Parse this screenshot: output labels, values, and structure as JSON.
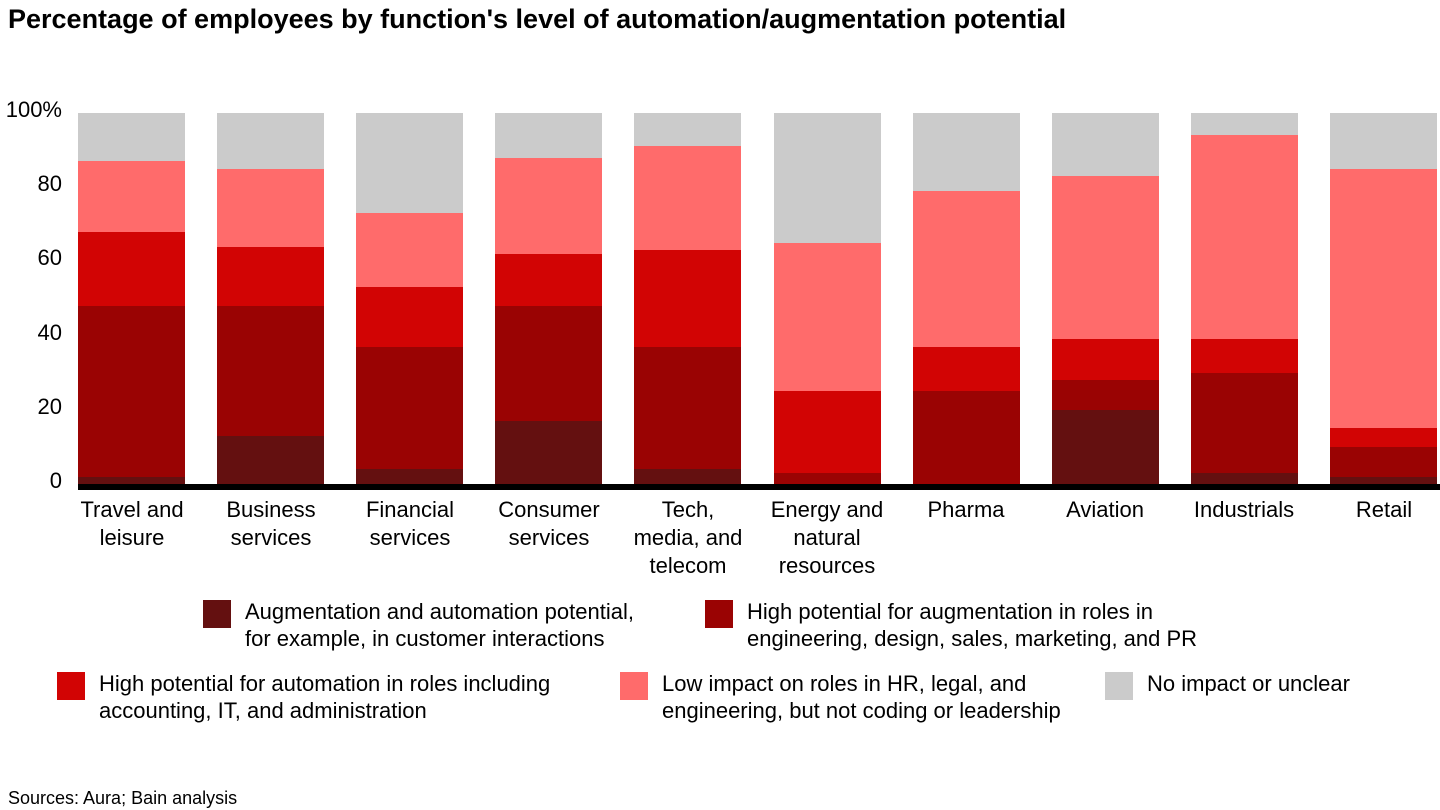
{
  "title": "Percentage of employees by function's level of automation/augmentation potential",
  "sources": "Sources: Aura; Bain analysis",
  "y_axis": {
    "ticks": [
      {
        "value": 100,
        "label": "100%"
      },
      {
        "value": 80,
        "label": "80"
      },
      {
        "value": 60,
        "label": "60"
      },
      {
        "value": 40,
        "label": "40"
      },
      {
        "value": 20,
        "label": "20"
      },
      {
        "value": 0,
        "label": "0"
      }
    ]
  },
  "chart_data": {
    "type": "bar",
    "stacked": true,
    "unit": "%",
    "ylim": [
      0,
      100
    ],
    "grid": false,
    "legend_position": "bottom",
    "categories": [
      "Travel and leisure",
      "Business services",
      "Financial services",
      "Consumer services",
      "Tech, media, and telecom",
      "Energy and natural resources",
      "Pharma",
      "Aviation",
      "Industrials",
      "Retail"
    ],
    "category_label_lines": [
      [
        "Travel and",
        "leisure"
      ],
      [
        "Business",
        "services"
      ],
      [
        "Financial",
        "services"
      ],
      [
        "Consumer",
        "services"
      ],
      [
        "Tech,",
        "media, and",
        "telecom"
      ],
      [
        "Energy and",
        "natural",
        "resources"
      ],
      [
        "Pharma"
      ],
      [
        "Aviation"
      ],
      [
        "Industrials"
      ],
      [
        "Retail"
      ]
    ],
    "series": [
      {
        "name": "Augmentation and automation potential, for example, in customer interactions",
        "color": "#641010",
        "values": [
          2,
          13,
          4,
          17,
          4,
          0,
          0,
          20,
          3,
          2
        ]
      },
      {
        "name": "High potential for augmentation in roles in engineering, design, sales, marketing, and PR",
        "color": "#9a0303",
        "values": [
          46,
          35,
          33,
          31,
          33,
          3,
          25,
          8,
          27,
          8
        ]
      },
      {
        "name": "High potential for automation in roles including accounting, IT, and administration",
        "color": "#d20404",
        "values": [
          20,
          16,
          16,
          14,
          26,
          22,
          12,
          11,
          9,
          5
        ]
      },
      {
        "name": "Low impact on roles in HR, legal, and engineering, but not coding or leadership",
        "color": "#ff6b6b",
        "values": [
          19,
          21,
          20,
          26,
          28,
          40,
          42,
          44,
          55,
          70
        ]
      },
      {
        "name": "No impact or unclear",
        "color": "#cbcbcb",
        "values": [
          13,
          15,
          27,
          12,
          9,
          35,
          21,
          17,
          6,
          15
        ]
      }
    ]
  },
  "legend": {
    "items": [
      {
        "color": "#641010",
        "label": "Augmentation and automation potential, for example, in customer interactions",
        "lines": [
          "Augmentation and automation potential,",
          "for example, in customer interactions"
        ]
      },
      {
        "color": "#9a0303",
        "label": "High potential for augmentation in roles in engineering, design, sales, marketing, and PR",
        "lines": [
          "High potential for augmentation in roles in",
          "engineering, design, sales, marketing, and PR"
        ]
      },
      {
        "color": "#d20404",
        "label": "High potential for automation in roles including accounting, IT, and administration",
        "lines": [
          "High potential for automation in roles including",
          "accounting, IT, and administration"
        ]
      },
      {
        "color": "#ff6b6b",
        "label": "Low impact on roles in HR, legal, and engineering, but not coding or leadership",
        "lines": [
          "Low impact on roles in HR, legal, and",
          "engineering, but not coding or leadership"
        ]
      },
      {
        "color": "#cbcbcb",
        "label": "No impact or unclear",
        "lines": [
          "No impact or unclear"
        ]
      }
    ]
  }
}
